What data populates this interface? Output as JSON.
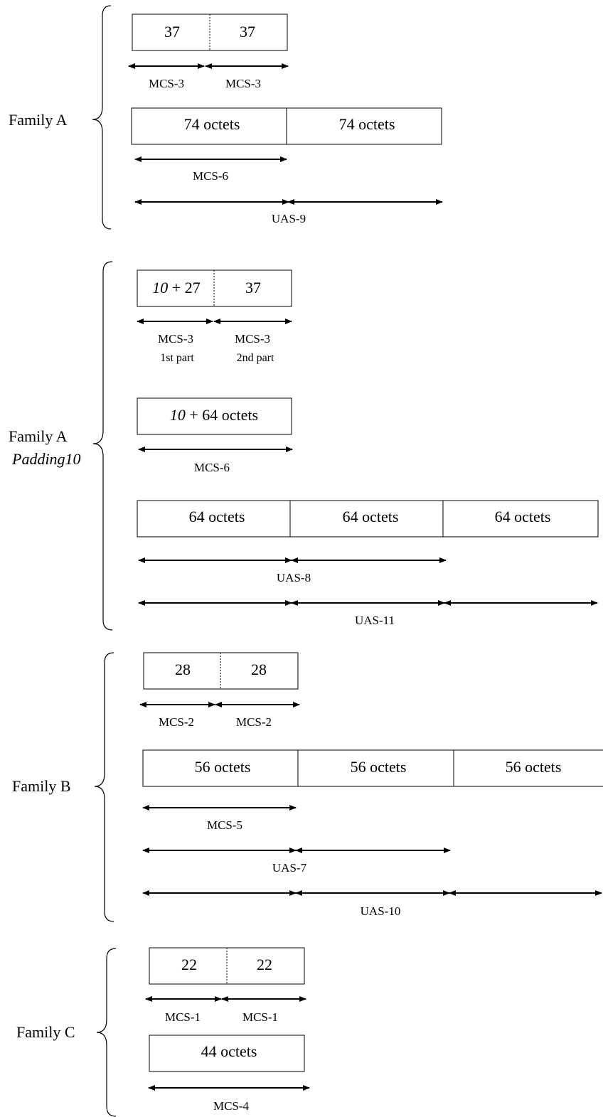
{
  "families": [
    {
      "id": "a",
      "label": "Family A",
      "sublabel": "",
      "small_left": "37",
      "small_right": "37",
      "small_arrow_left": "MCS-3",
      "small_arrow_right": "MCS-3",
      "large_cells": [
        "74 octets",
        "74 octets"
      ],
      "large_arrows": [
        {
          "label": "MCS-6",
          "segments": 1
        },
        {
          "label": "UAS-9",
          "segments": 2
        }
      ]
    },
    {
      "id": "a-pad",
      "label": "Family A",
      "sublabel": "Padding10",
      "small_left_italic": "10",
      "small_left_rest": " + 27",
      "small_right": "37",
      "small_arrow_left": "MCS-3",
      "small_arrow_left_sub": "1st part",
      "small_arrow_right": "MCS-3",
      "small_arrow_right_sub": "2nd part",
      "mid_box_italic": "10",
      "mid_box_rest": " + 64 octets",
      "mid_arrow": "MCS-6",
      "large_cells": [
        "64 octets",
        "64 octets",
        "64 octets"
      ],
      "large_arrows": [
        {
          "label": "UAS-8",
          "segments": 2
        },
        {
          "label": "UAS-11",
          "segments": 3
        }
      ]
    },
    {
      "id": "b",
      "label": "Family B",
      "sublabel": "",
      "small_left": "28",
      "small_right": "28",
      "small_arrow_left": "MCS-2",
      "small_arrow_right": "MCS-2",
      "large_cells": [
        "56 octets",
        "56 octets",
        "56 octets"
      ],
      "large_arrows": [
        {
          "label": "MCS-5",
          "segments": 1
        },
        {
          "label": "UAS-7",
          "segments": 2
        },
        {
          "label": "UAS-10",
          "segments": 3
        }
      ]
    },
    {
      "id": "c",
      "label": "Family C",
      "sublabel": "",
      "small_left": "22",
      "small_right": "22",
      "small_arrow_left": "MCS-1",
      "small_arrow_right": "MCS-1",
      "large_cells": [
        "44 octets"
      ],
      "large_arrows": [
        {
          "label": "MCS-4",
          "segments": 1
        }
      ]
    }
  ]
}
